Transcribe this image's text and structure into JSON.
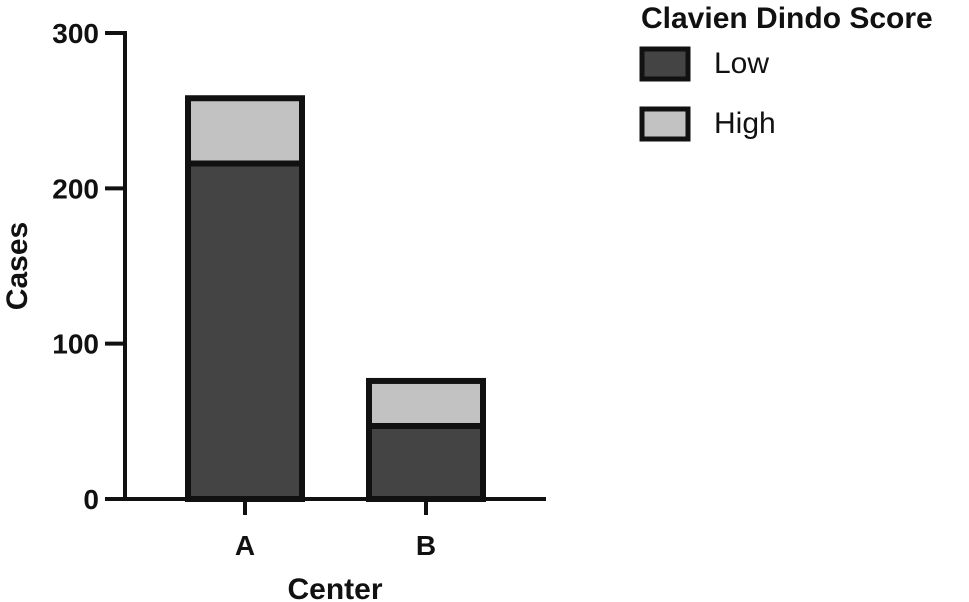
{
  "chart_data": {
    "type": "bar",
    "stacked": true,
    "categories": [
      "A",
      "B"
    ],
    "series": [
      {
        "name": "Low",
        "values": [
          216,
          47
        ],
        "color": "#444444"
      },
      {
        "name": "High",
        "values": [
          42,
          29
        ],
        "color": "#c2c2c2"
      }
    ],
    "xlabel": "Center",
    "ylabel": "Cases",
    "ylim": [
      0,
      300
    ],
    "yticks": [
      0,
      100,
      200,
      300
    ],
    "grid": false,
    "legend": {
      "title": "Clavien Dindo Score",
      "placement": "top-right",
      "entries": [
        "Low",
        "High"
      ]
    },
    "outline_color": "#111111"
  }
}
